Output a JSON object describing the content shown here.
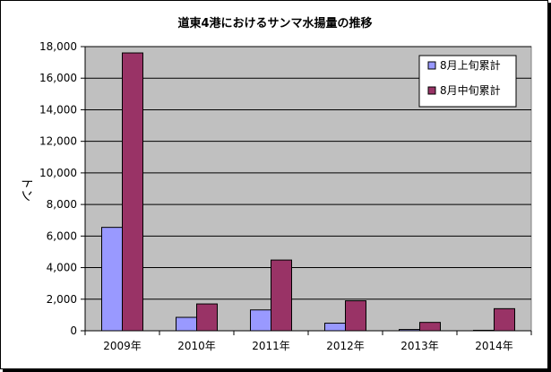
{
  "chart_data": {
    "type": "bar",
    "title": "道東4港におけるサンマ水揚量の推移",
    "ylabel": "トン",
    "xlabel": "",
    "categories": [
      "2009年",
      "2010年",
      "2011年",
      "2012年",
      "2013年",
      "2014年"
    ],
    "series": [
      {
        "name": "8月上旬累計",
        "values": [
          6550,
          850,
          1320,
          480,
          80,
          30
        ],
        "color": "#9999ff"
      },
      {
        "name": "8月中旬累計",
        "values": [
          17600,
          1700,
          4480,
          1900,
          530,
          1400
        ],
        "color": "#993366"
      }
    ],
    "ylim": [
      0,
      18000
    ],
    "yticks": [
      "0",
      "2,000",
      "4,000",
      "6,000",
      "8,000",
      "10,000",
      "12,000",
      "14,000",
      "16,000",
      "18,000"
    ],
    "grid": true,
    "legend_position": "top-right",
    "plot_background": "#c0c0c0"
  }
}
